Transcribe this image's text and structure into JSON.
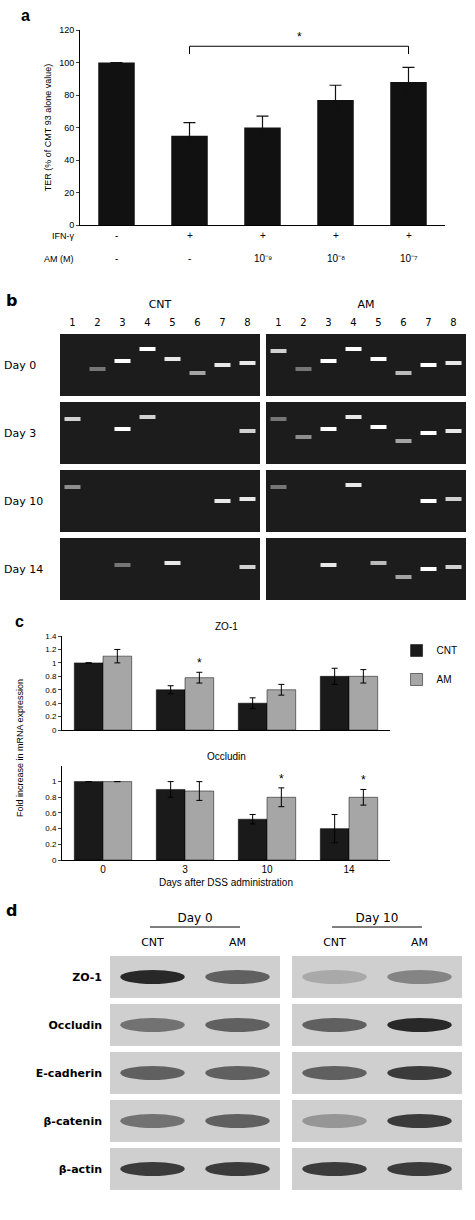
{
  "chart_data": [
    {
      "type": "bar",
      "ylabel": "TER (% of CMT 93 alone value)",
      "categories": [
        null,
        null,
        null,
        null,
        null
      ],
      "values": [
        100,
        55,
        60,
        77,
        88
      ],
      "errors": [
        0,
        8,
        7,
        9,
        9
      ],
      "color": "#111111",
      "ylim": [
        0,
        120
      ],
      "yticks": [
        0,
        20,
        40,
        60,
        80,
        100,
        120
      ],
      "grid": false,
      "tick_labels": "y",
      "rows": [
        {
          "label": "IFN-γ",
          "values": [
            "-",
            "+",
            "+",
            "+",
            "+"
          ]
        },
        {
          "label": "AM (M)",
          "values": [
            "-",
            "-",
            "10⁻⁹",
            "10⁻⁸",
            "10⁻⁷"
          ]
        }
      ],
      "bracket": {
        "from": 1,
        "to": 4,
        "y": 110,
        "label": "*"
      }
    },
    {
      "type": "bar",
      "title": "ZO-1",
      "ylabel": "Fold increase in mRNA expression",
      "categories": [
        "0",
        "3",
        "10",
        "14"
      ],
      "series": [
        {
          "name": "CNT",
          "color": "#1a1a1a",
          "values": [
            1,
            0.6,
            0.4,
            0.8
          ],
          "errors": [
            0,
            0.06,
            0.08,
            0.12
          ],
          "significant": []
        },
        {
          "name": "AM",
          "color": "#a6a6a6",
          "values": [
            1.1,
            0.78,
            0.6,
            0.8
          ],
          "errors": [
            0.1,
            0.08,
            0.08,
            0.1
          ],
          "significant": [
            1
          ]
        }
      ],
      "ylim": [
        0,
        1.4
      ],
      "yticks": [
        0,
        0.2,
        0.4,
        0.6,
        0.8,
        1,
        1.2,
        1.4
      ],
      "grid": false,
      "legend": "right",
      "tick_labels": "y"
    },
    {
      "type": "bar",
      "title": "Occludin",
      "xlabel": "Days after DSS administration",
      "categories": [
        "0",
        "3",
        "10",
        "14"
      ],
      "series": [
        {
          "name": "CNT",
          "color": "#1a1a1a",
          "values": [
            1,
            0.9,
            0.52,
            0.4
          ],
          "errors": [
            0,
            0.1,
            0.06,
            0.18
          ],
          "significant": []
        },
        {
          "name": "AM",
          "color": "#a6a6a6",
          "values": [
            1,
            0.88,
            0.8,
            0.8
          ],
          "errors": [
            0,
            0.12,
            0.12,
            0.1
          ],
          "significant": [
            2,
            3
          ]
        }
      ],
      "ylim": [
        0,
        1.2
      ],
      "yticks": [
        0,
        0.2,
        0.4,
        0.6,
        0.8,
        1
      ],
      "grid": false,
      "tick_labels": true
    }
  ],
  "panel_labels": [
    "a",
    "b",
    "c",
    "d"
  ],
  "gel": {
    "rows": [
      "Day 0",
      "Day 3",
      "Day 10",
      "Day 14"
    ],
    "groups": [
      {
        "label": "CNT",
        "lanes": [
          "1",
          "2",
          "3",
          "4",
          "5",
          "6",
          "7",
          "8"
        ],
        "bands": [
          [
            0,
            0.4,
            1,
            1,
            0.9,
            0.6,
            0.9,
            0.9
          ],
          [
            0.8,
            0,
            1,
            0.8,
            0,
            0,
            0,
            0.8
          ],
          [
            0.5,
            0,
            0,
            0,
            0,
            0,
            0.9,
            0.9
          ],
          [
            0,
            0,
            0.4,
            0,
            0.9,
            0,
            0,
            0.8
          ]
        ]
      },
      {
        "label": "AM",
        "lanes": [
          "1",
          "2",
          "3",
          "4",
          "5",
          "6",
          "7",
          "8"
        ],
        "bands": [
          [
            0.8,
            0.4,
            1,
            1,
            1,
            0.7,
            1,
            0.9
          ],
          [
            0.4,
            0.5,
            1,
            0.9,
            1,
            0.6,
            1,
            0.9
          ],
          [
            0.4,
            0,
            0,
            0.9,
            0,
            0,
            1,
            0.8
          ],
          [
            0,
            0,
            0.9,
            0,
            0.7,
            0.6,
            1,
            0.8
          ]
        ]
      }
    ]
  },
  "blot": {
    "groups": [
      {
        "label": "Day 0",
        "lanes": [
          "CNT",
          "AM"
        ]
      },
      {
        "label": "Day 10",
        "lanes": [
          "CNT",
          "AM"
        ]
      }
    ],
    "rows": [
      {
        "label": "ZO-1",
        "bands": [
          0.9,
          0.6,
          0.2,
          0.4
        ]
      },
      {
        "label": "Occludin",
        "bands": [
          0.5,
          0.6,
          0.6,
          0.9
        ]
      },
      {
        "label": "E-cadherin",
        "bands": [
          0.6,
          0.6,
          0.6,
          0.8
        ]
      },
      {
        "label": "β-catenin",
        "bands": [
          0.5,
          0.6,
          0.3,
          0.8
        ]
      },
      {
        "label": "β-actin",
        "bands": [
          0.8,
          0.8,
          0.8,
          0.8
        ]
      }
    ]
  }
}
